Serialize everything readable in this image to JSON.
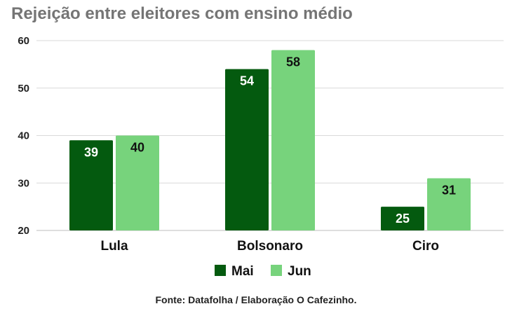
{
  "chart_data": {
    "type": "bar",
    "title": "Rejeição entre eleitores com ensino médio",
    "categories": [
      "Lula",
      "Bolsonaro",
      "Ciro"
    ],
    "series": [
      {
        "name": "Mai",
        "values": [
          39,
          54,
          25
        ],
        "color": "#045a0f"
      },
      {
        "name": "Jun",
        "values": [
          40,
          58,
          31
        ],
        "color": "#77d37c"
      }
    ],
    "ylim": [
      20,
      60
    ],
    "yticks": [
      "20",
      "30",
      "40",
      "50",
      "60"
    ],
    "xlabel": "",
    "ylabel": "",
    "grid": true,
    "legend_position": "bottom",
    "data_labels": true
  },
  "source": "Fonte: Datafolha / Elaboração O Cafezinho."
}
